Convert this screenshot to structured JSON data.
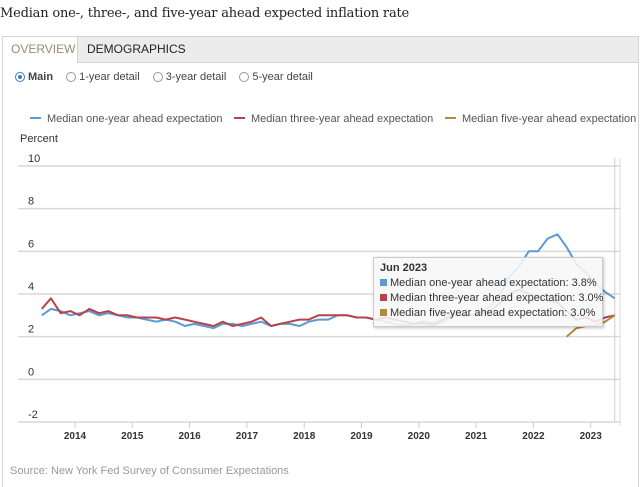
{
  "page_title": "Median one-, three-, and five-year ahead expected inflation rate",
  "tabs": [
    {
      "label": "OVERVIEW",
      "active": true
    },
    {
      "label": "DEMOGRAPHICS",
      "active": false
    }
  ],
  "view_options": [
    {
      "label": "Main",
      "selected": true
    },
    {
      "label": "1-year detail",
      "selected": false
    },
    {
      "label": "3-year detail",
      "selected": false
    },
    {
      "label": "5-year detail",
      "selected": false
    }
  ],
  "source": "Source: New York Fed Survey of Consumer Expectations",
  "tooltip": {
    "title": "Jun 2023",
    "rows": [
      {
        "label": "Median one-year ahead expectation: 3.8%",
        "color": "#5b9bd5"
      },
      {
        "label": "Median three-year ahead expectation: 3.0%",
        "color": "#b5444a"
      },
      {
        "label": "Median five-year ahead expectation: 3.0%",
        "color": "#b08a3e"
      }
    ]
  },
  "chart_data": {
    "type": "line",
    "title": "Median one-, three-, and five-year ahead expected inflation rate",
    "ylabel": "Percent",
    "xlabel": "",
    "ylim": [
      -2,
      10
    ],
    "yticks": [
      10,
      8,
      6,
      4,
      2,
      0,
      -2
    ],
    "xlim": [
      2013.42,
      2023.5
    ],
    "xticks": [
      2014,
      2015,
      2016,
      2017,
      2018,
      2019,
      2020,
      2021,
      2022,
      2023
    ],
    "grid": true,
    "legend_position": "top",
    "series": [
      {
        "name": "Median one-year ahead expectation",
        "color": "#5b9bd5",
        "x": [
          2013.42,
          2013.58,
          2013.75,
          2013.92,
          2014.08,
          2014.25,
          2014.42,
          2014.58,
          2014.75,
          2014.92,
          2015.08,
          2015.25,
          2015.42,
          2015.58,
          2015.75,
          2015.92,
          2016.08,
          2016.25,
          2016.42,
          2016.58,
          2016.75,
          2016.92,
          2017.08,
          2017.25,
          2017.42,
          2017.58,
          2017.75,
          2017.92,
          2018.08,
          2018.25,
          2018.42,
          2018.58,
          2018.75,
          2018.92,
          2019.08,
          2019.25,
          2019.42,
          2019.58,
          2019.75,
          2019.92,
          2020.08,
          2020.25,
          2020.42,
          2020.58,
          2020.75,
          2020.92,
          2021.08,
          2021.25,
          2021.42,
          2021.58,
          2021.75,
          2021.92,
          2022.08,
          2022.25,
          2022.42,
          2022.58,
          2022.75,
          2022.92,
          2023.08,
          2023.25,
          2023.42
        ],
        "values": [
          3.0,
          3.3,
          3.2,
          3.0,
          3.1,
          3.2,
          3.0,
          3.1,
          3.0,
          2.9,
          2.9,
          2.8,
          2.7,
          2.8,
          2.7,
          2.5,
          2.6,
          2.5,
          2.4,
          2.6,
          2.6,
          2.5,
          2.6,
          2.7,
          2.5,
          2.6,
          2.6,
          2.5,
          2.7,
          2.8,
          2.8,
          3.0,
          3.0,
          2.9,
          2.9,
          2.8,
          2.7,
          2.6,
          2.5,
          2.6,
          2.6,
          2.5,
          2.7,
          3.0,
          3.0,
          3.0,
          3.1,
          3.4,
          4.0,
          4.8,
          5.3,
          6.0,
          6.0,
          6.6,
          6.8,
          6.2,
          5.4,
          5.0,
          4.5,
          4.1,
          3.8
        ]
      },
      {
        "name": "Median three-year ahead expectation",
        "color": "#b5444a",
        "x": [
          2013.42,
          2013.58,
          2013.75,
          2013.92,
          2014.08,
          2014.25,
          2014.42,
          2014.58,
          2014.75,
          2014.92,
          2015.08,
          2015.25,
          2015.42,
          2015.58,
          2015.75,
          2015.92,
          2016.08,
          2016.25,
          2016.42,
          2016.58,
          2016.75,
          2016.92,
          2017.08,
          2017.25,
          2017.42,
          2017.58,
          2017.75,
          2017.92,
          2018.08,
          2018.25,
          2018.42,
          2018.58,
          2018.75,
          2018.92,
          2019.08,
          2019.25,
          2019.42,
          2019.58,
          2019.75,
          2019.92,
          2020.08,
          2020.25,
          2020.42,
          2020.58,
          2020.75,
          2020.92,
          2021.08,
          2021.25,
          2021.42,
          2021.58,
          2021.75,
          2021.92,
          2022.08,
          2022.25,
          2022.42,
          2022.58,
          2022.75,
          2022.92,
          2023.08,
          2023.25,
          2023.42
        ],
        "values": [
          3.3,
          3.8,
          3.1,
          3.2,
          3.0,
          3.3,
          3.1,
          3.2,
          3.0,
          3.0,
          2.9,
          2.9,
          2.9,
          2.8,
          2.9,
          2.8,
          2.7,
          2.6,
          2.5,
          2.7,
          2.5,
          2.6,
          2.7,
          2.9,
          2.5,
          2.6,
          2.7,
          2.8,
          2.8,
          3.0,
          3.0,
          3.0,
          3.0,
          2.9,
          2.9,
          2.8,
          2.9,
          2.8,
          2.7,
          2.6,
          2.7,
          2.6,
          2.8,
          3.0,
          3.0,
          3.0,
          3.1,
          3.2,
          3.6,
          4.0,
          4.2,
          4.0,
          3.9,
          3.7,
          3.6,
          3.2,
          2.8,
          2.9,
          2.7,
          2.9,
          3.0
        ]
      },
      {
        "name": "Median five-year ahead expectation",
        "color": "#b08a3e",
        "x": [
          2022.58,
          2022.75,
          2022.92,
          2023.08,
          2023.25,
          2023.42
        ],
        "values": [
          2.0,
          2.4,
          2.5,
          2.5,
          2.7,
          3.0
        ]
      }
    ]
  }
}
